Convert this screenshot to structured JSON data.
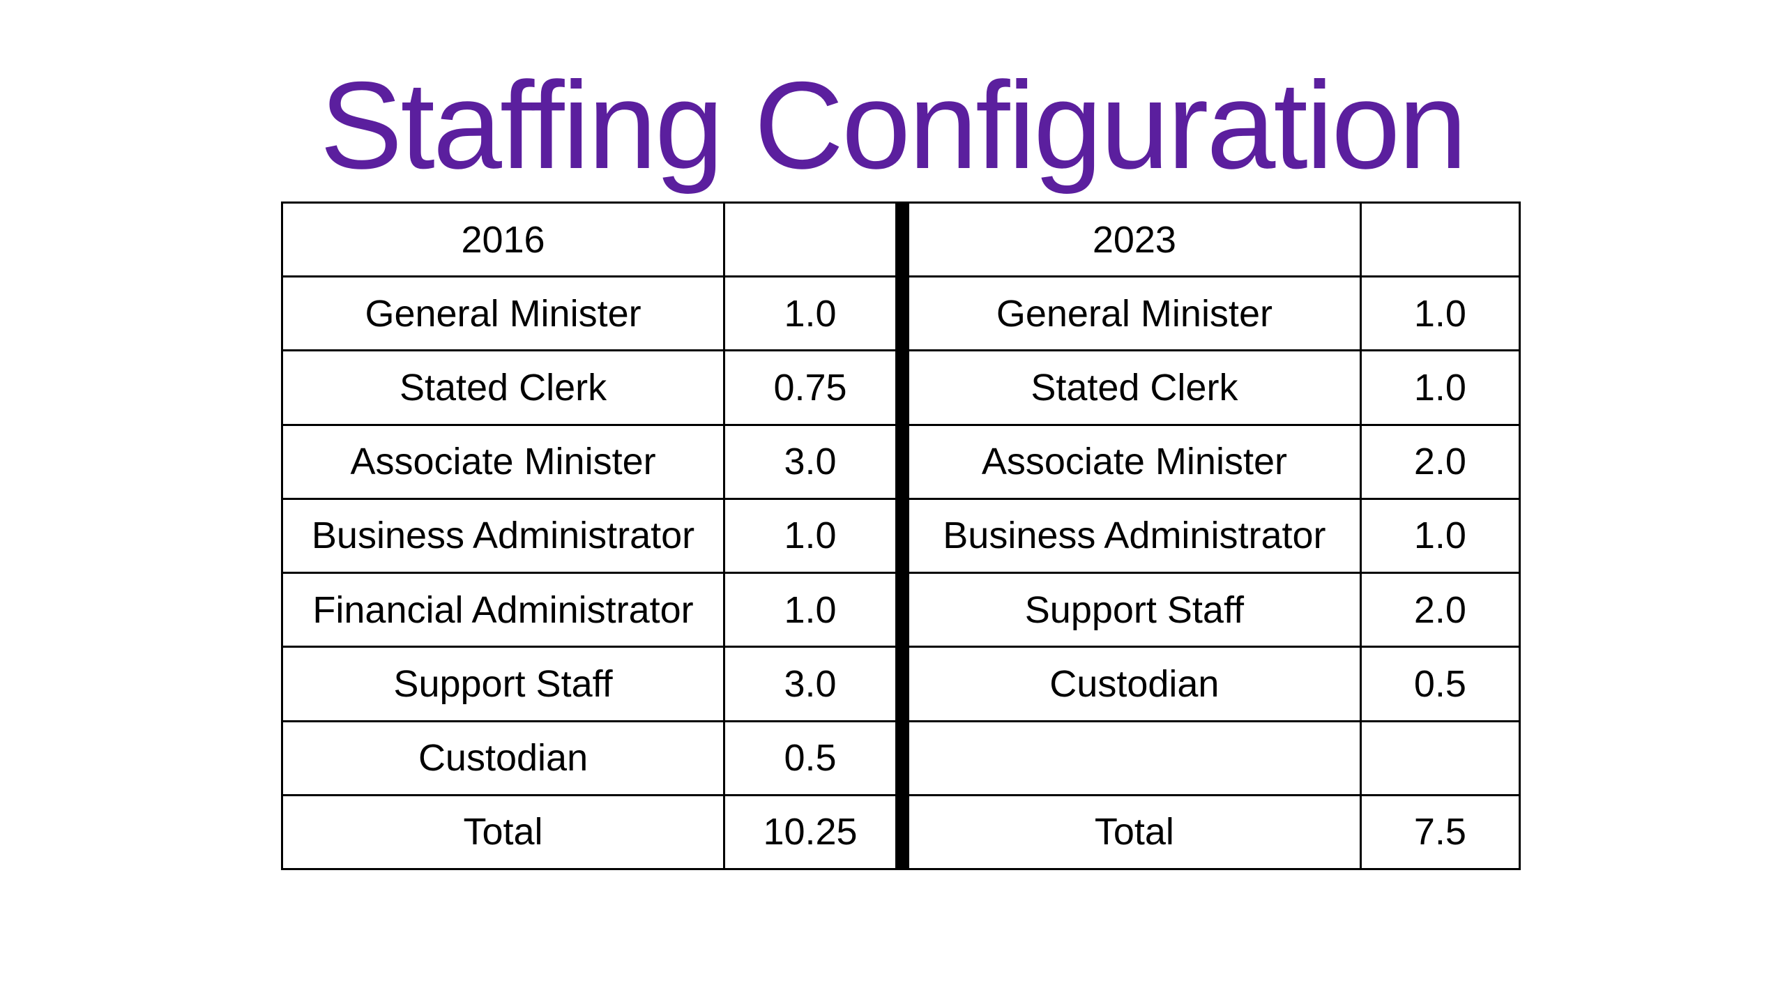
{
  "title": "Staffing Configuration",
  "table": {
    "left_header": {
      "year": "2016",
      "value": ""
    },
    "right_header": {
      "year": "2023",
      "value": ""
    },
    "rows": [
      {
        "left_role": "General Minister",
        "left_fte": "1.0",
        "right_role": "General Minister",
        "right_fte": "1.0"
      },
      {
        "left_role": "Stated Clerk",
        "left_fte": "0.75",
        "right_role": "Stated Clerk",
        "right_fte": "1.0"
      },
      {
        "left_role": "Associate Minister",
        "left_fte": "3.0",
        "right_role": "Associate Minister",
        "right_fte": "2.0"
      },
      {
        "left_role": "Business Administrator",
        "left_fte": "1.0",
        "right_role": "Business Administrator",
        "right_fte": "1.0"
      },
      {
        "left_role": "Financial Administrator",
        "left_fte": "1.0",
        "right_role": "Support Staff",
        "right_fte": "2.0"
      },
      {
        "left_role": "Support Staff",
        "left_fte": "3.0",
        "right_role": "Custodian",
        "right_fte": "0.5"
      },
      {
        "left_role": "Custodian",
        "left_fte": "0.5",
        "right_role": "",
        "right_fte": ""
      },
      {
        "left_role": "Total",
        "left_fte": "10.25",
        "right_role": "Total",
        "right_fte": "7.5"
      }
    ]
  },
  "colors": {
    "title": "#5b1f9e",
    "border": "#000000",
    "text": "#000000",
    "background": "#ffffff"
  }
}
